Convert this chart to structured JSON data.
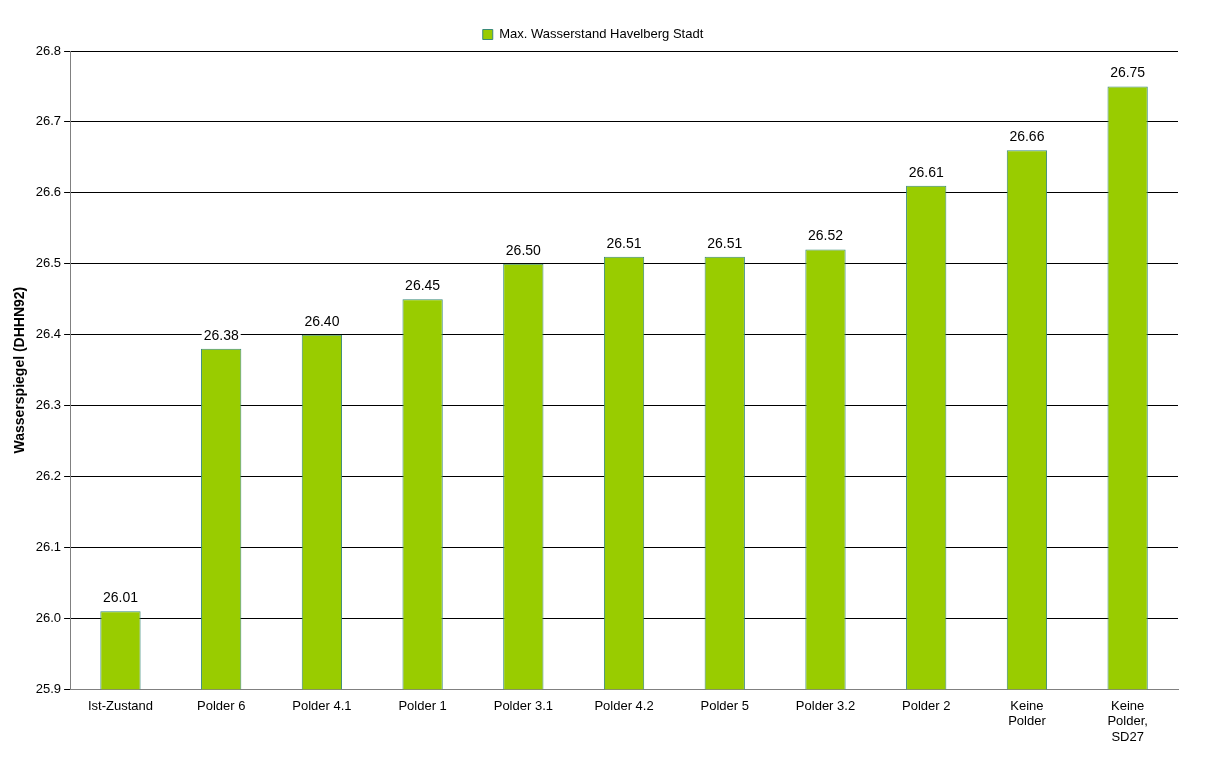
{
  "chart_data": {
    "type": "bar",
    "ylabel": "Wasserspiegel (DHHN92)",
    "categories": [
      "Ist-Zustand",
      "Polder 6",
      "Polder 4.1",
      "Polder 1",
      "Polder 3.1",
      "Polder 4.2",
      "Polder 5",
      "Polder 3.2",
      "Polder 2",
      "Keine Polder",
      "Keine Polder, SD27"
    ],
    "series": [
      {
        "name": "Max. Wasserstand Havelberg Stadt",
        "color": "#99cc00",
        "values": [
          26.01,
          26.38,
          26.4,
          26.45,
          26.5,
          26.51,
          26.51,
          26.52,
          26.61,
          26.66,
          26.75
        ],
        "value_labels": [
          "26.01",
          "26.38",
          "26.40",
          "26.45",
          "26.50",
          "26.51",
          "26.51",
          "26.52",
          "26.61",
          "26.66",
          "26.75"
        ]
      }
    ],
    "ylim": [
      25.9,
      26.8
    ],
    "yticks": [
      25.9,
      {
        "value": 26,
        "label": "26.0"
      },
      26.1,
      26.2,
      26.3,
      26.4,
      26.5,
      26.6,
      26.7,
      26.8
    ],
    "grid": "y",
    "legend": "top"
  }
}
